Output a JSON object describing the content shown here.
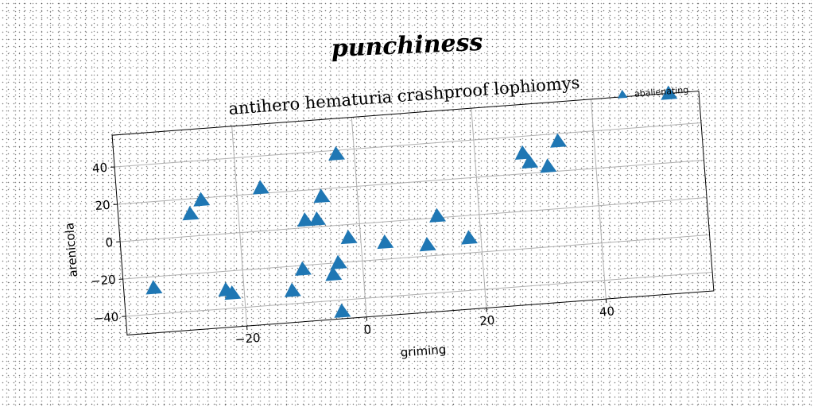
{
  "figure_title": "punchiness",
  "chart_data": {
    "type": "scatter",
    "title": "antihero hematuria crashproof lophiomys",
    "xlabel": "griming",
    "ylabel": "arenicola",
    "xlim": [
      -40,
      58
    ],
    "ylim": [
      -50,
      57
    ],
    "xticks": [
      -20,
      0,
      20,
      40
    ],
    "yticks": [
      -40,
      -20,
      0,
      20,
      40
    ],
    "grid": true,
    "legend_position": "top-right",
    "series": [
      {
        "name": "abalienating",
        "marker": "triangle",
        "color": "#1f77b4",
        "points": [
          {
            "x": -35,
            "y": -26
          },
          {
            "x": -28,
            "y": 12
          },
          {
            "x": -26,
            "y": 19
          },
          {
            "x": -23,
            "y": -30
          },
          {
            "x": -22,
            "y": -32
          },
          {
            "x": -16,
            "y": 23
          },
          {
            "x": -12,
            "y": -33
          },
          {
            "x": -10,
            "y": -22
          },
          {
            "x": -9,
            "y": 4
          },
          {
            "x": -7,
            "y": 4
          },
          {
            "x": -6,
            "y": 16
          },
          {
            "x": -5,
            "y": -26
          },
          {
            "x": -4,
            "y": -20
          },
          {
            "x": -4,
            "y": -46
          },
          {
            "x": -3,
            "y": 38
          },
          {
            "x": -2,
            "y": -7
          },
          {
            "x": 4,
            "y": -11
          },
          {
            "x": 11,
            "y": -14
          },
          {
            "x": 13,
            "y": 1
          },
          {
            "x": 18,
            "y": -12
          },
          {
            "x": 28,
            "y": 31
          },
          {
            "x": 29,
            "y": 26
          },
          {
            "x": 32,
            "y": 23
          },
          {
            "x": 34,
            "y": 36
          },
          {
            "x": 53,
            "y": 57
          }
        ]
      }
    ]
  }
}
